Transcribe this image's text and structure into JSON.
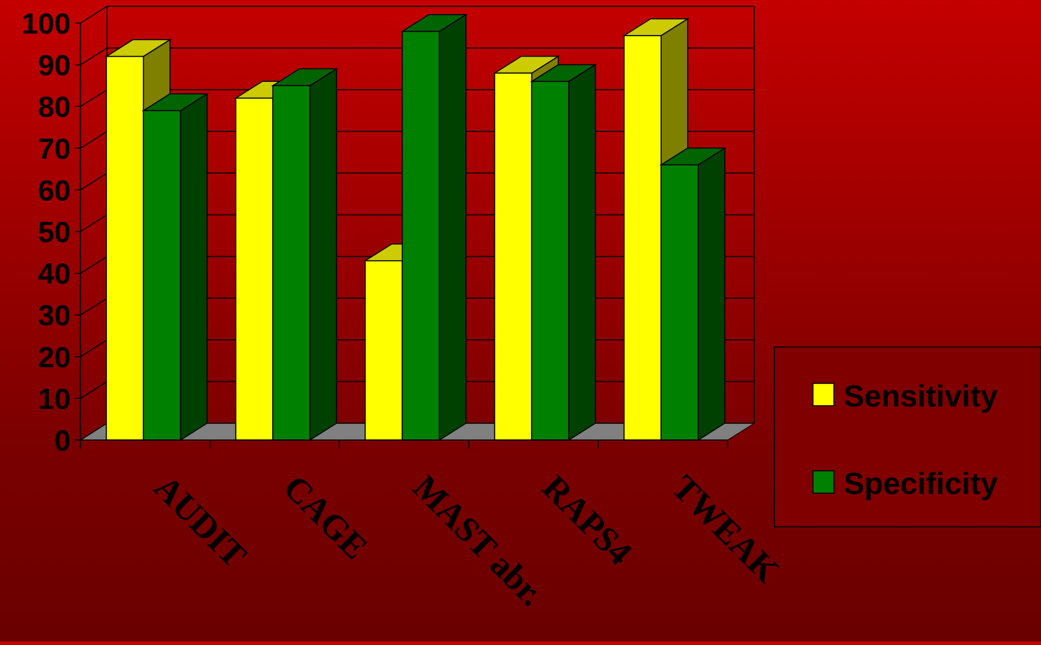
{
  "chart_data": {
    "type": "bar",
    "style": "3d-clustered-column",
    "categories": [
      "AUDIT",
      "CAGE",
      "MAST abr.",
      "RAPS4",
      "TWEAK"
    ],
    "series": [
      {
        "name": "Sensitivity",
        "values": [
          92,
          82,
          43,
          88,
          97
        ],
        "color": "#ffff00"
      },
      {
        "name": "Specificity",
        "values": [
          79,
          85,
          98,
          86,
          66
        ],
        "color": "#008000"
      }
    ],
    "ylim": [
      0,
      100
    ],
    "yticks": [
      0,
      10,
      20,
      30,
      40,
      50,
      60,
      70,
      80,
      90,
      100
    ],
    "grid": true,
    "legend_position": "right"
  },
  "colors": {
    "background_top": "#c40000",
    "background_bottom": "#6a0000",
    "gridline": "#000000",
    "floor": "#808080",
    "sensitivity_front": "#ffff00",
    "sensitivity_top": "#cccc00",
    "sensitivity_side": "#808000",
    "specificity_front": "#008000",
    "specificity_top": "#006400",
    "specificity_side": "#004000"
  }
}
